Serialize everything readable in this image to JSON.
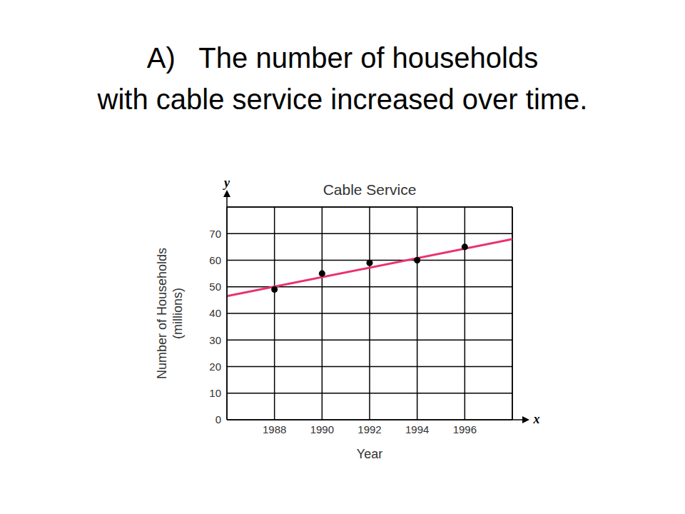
{
  "header": {
    "lines": [
      "A)   The number of households",
      "with cable service increased over time."
    ]
  },
  "chart_data": {
    "type": "scatter",
    "title": "Cable Service",
    "xlabel": "Year",
    "ylabel": [
      "Number of Households",
      "(millions)"
    ],
    "axis_letters": {
      "x": "x",
      "y": "y"
    },
    "xlim": [
      1986,
      1998
    ],
    "xticks": [
      1988,
      1990,
      1992,
      1994,
      1996
    ],
    "ylim": [
      0,
      80
    ],
    "yticks": [
      0,
      10,
      20,
      30,
      40,
      50,
      60,
      70
    ],
    "grid": true,
    "series": [
      {
        "type": "scatter",
        "color": "#000000",
        "marker": "circle",
        "x": [
          1988,
          1990,
          1992,
          1994,
          1996
        ],
        "values": [
          49,
          55,
          59,
          60,
          65
        ]
      },
      {
        "type": "line",
        "color": "#e8336e",
        "line_style": "solid",
        "x": [
          1986,
          1998
        ],
        "values": [
          46.5,
          67.9
        ]
      }
    ]
  }
}
